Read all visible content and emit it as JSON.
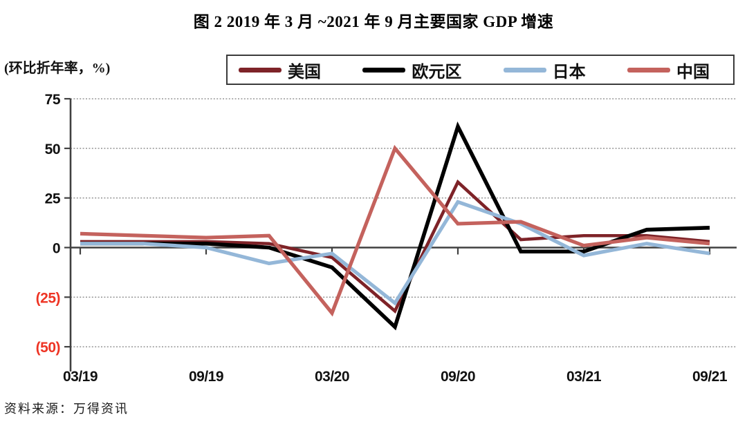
{
  "title": "图 2  2019 年 3 月 ~2021 年 9 月主要国家 GDP 增速",
  "unit_label": "(环比折年率，%)",
  "source": "资料来源：万得资讯",
  "colors": {
    "us": "#7e2328",
    "eurozone": "#000000",
    "japan": "#94b7d8",
    "china": "#c4625d",
    "negative_axis_label": "#ee3424",
    "axis": "#404040",
    "gridline": "#8a8a8a"
  },
  "chart_data": {
    "type": "line",
    "title": "图 2  2019 年 3 月 ~2021 年 9 月主要国家 GDP 增速",
    "ylabel": "(环比折年率，%)",
    "categories": [
      "03/19",
      "06/19",
      "09/19",
      "12/19",
      "03/20",
      "06/20",
      "09/20",
      "12/20",
      "03/21",
      "06/21",
      "09/21"
    ],
    "x_tick_labels": [
      "03/19",
      "09/19",
      "03/20",
      "09/20",
      "03/21",
      "09/21"
    ],
    "x_labeled_every": 2,
    "series": [
      {
        "name": "美国",
        "color": "#7e2328",
        "values": [
          3,
          3,
          3,
          2,
          -5,
          -32,
          33,
          4,
          6,
          6,
          3
        ]
      },
      {
        "name": "欧元区",
        "color": "#000000",
        "values": [
          2,
          2,
          2,
          0,
          -10,
          -40,
          61,
          -2,
          -2,
          9,
          10
        ]
      },
      {
        "name": "日本",
        "color": "#94b7d8",
        "values": [
          2,
          2,
          0,
          -8,
          -3,
          -28,
          23,
          12,
          -4,
          2,
          -3
        ]
      },
      {
        "name": "中国",
        "color": "#c4625d",
        "values": [
          7,
          6,
          5,
          6,
          -33,
          50,
          12,
          13,
          1,
          5,
          2
        ]
      }
    ],
    "y_ticks": [
      75,
      50,
      25,
      0,
      -25,
      -50
    ],
    "y_tick_labels": [
      "75",
      "50",
      "25",
      "0",
      "(25)",
      "(50)"
    ],
    "ylim": [
      -62,
      80
    ],
    "grid": "dotted-horizontal",
    "legend_position": "top",
    "negative_labels_in_parentheses_red": true
  }
}
